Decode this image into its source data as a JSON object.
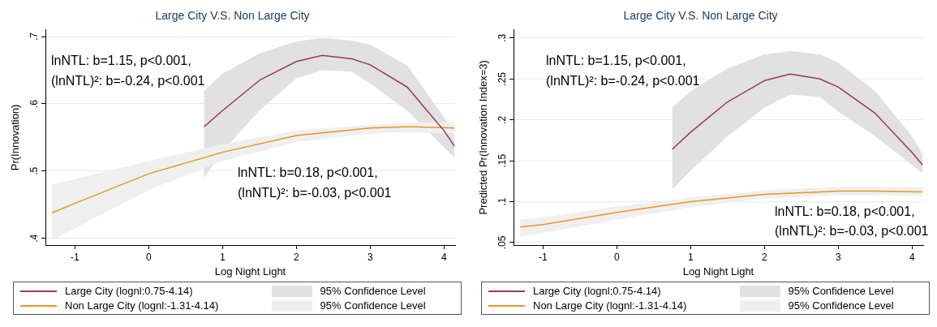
{
  "chart_data": [
    {
      "type": "line",
      "title": "Large City V.S. Non Large City",
      "xlabel": "Log Night Light",
      "ylabel": "Pr(Innovation)",
      "xlim": [
        -1.4,
        4.15
      ],
      "xticks": [
        -1,
        0,
        1,
        2,
        3,
        4
      ],
      "ylim": [
        0.39,
        0.71
      ],
      "yticks": [
        {
          "value": 0.4,
          "label": ".4"
        },
        {
          "value": 0.5,
          "label": ".5"
        },
        {
          "value": 0.6,
          "label": ".6"
        },
        {
          "value": 0.7,
          "label": ".7"
        }
      ],
      "grid": "y",
      "legend": "bottom",
      "annotations": [
        "lnNTL: b=1.15, p<0.001,",
        "(lnNTL)²: b=-0.24, p<0.001",
        "lnNTL: b=0.18, p<0.001,",
        "(lnNTL)²: b=-0.03, p<0.001",
        "95% Confidence Level",
        "95% Confidence Level"
      ],
      "series": [
        {
          "name": "Large City (lognl:0.75-4.14)",
          "type": "line",
          "color": "#9b3a4a",
          "x": [
            0.75,
            1,
            1.5,
            2,
            2.35,
            2.75,
            3,
            3.5,
            4,
            4.14
          ],
          "values": [
            0.566,
            0.59,
            0.635,
            0.663,
            0.672,
            0.667,
            0.658,
            0.625,
            0.56,
            0.537
          ],
          "upper": [
            0.62,
            0.645,
            0.675,
            0.693,
            0.698,
            0.694,
            0.688,
            0.657,
            0.58,
            0.553
          ],
          "lower": [
            0.49,
            0.53,
            0.59,
            0.638,
            0.65,
            0.648,
            0.63,
            0.59,
            0.535,
            0.52
          ]
        },
        {
          "name": "Non Large City (lognl:-1.31-4.14)",
          "type": "line",
          "color": "#e8951f",
          "x": [
            -1.31,
            -1,
            0,
            1,
            2,
            3,
            3.5,
            4.14
          ],
          "values": [
            0.438,
            0.452,
            0.496,
            0.528,
            0.553,
            0.564,
            0.566,
            0.564
          ],
          "upper": [
            0.48,
            0.488,
            0.515,
            0.54,
            0.56,
            0.569,
            0.572,
            0.573
          ],
          "lower": [
            0.397,
            0.415,
            0.472,
            0.515,
            0.543,
            0.556,
            0.558,
            0.556
          ]
        }
      ]
    },
    {
      "type": "line",
      "title": "Large City V.S. Non Large City",
      "xlabel": "Log Night Light",
      "ylabel": "Predicted Pr(Innovation Index=3)",
      "xlim": [
        -1.4,
        4.15
      ],
      "xticks": [
        -1,
        0,
        1,
        2,
        3,
        4
      ],
      "ylim": [
        0.047,
        0.31
      ],
      "yticks": [
        {
          "value": 0.05,
          "label": ".05"
        },
        {
          "value": 0.1,
          "label": ".1"
        },
        {
          "value": 0.15,
          "label": ".15"
        },
        {
          "value": 0.2,
          "label": ".2"
        },
        {
          "value": 0.25,
          "label": ".25"
        },
        {
          "value": 0.3,
          "label": ".3"
        }
      ],
      "grid": "y",
      "legend": "bottom",
      "annotations": [
        "lnNTL: b=1.15, p<0.001,",
        "(lnNTL)²: b=-0.24, p<0.001",
        "lnNTL: b=0.18, p<0.001,",
        "(lnNTL)²: b=-0.03, p<0.001",
        "95% Confidence Level",
        "95% Confidence Level"
      ],
      "series": [
        {
          "name": "Large City (lognl:0.75-4.14)",
          "type": "line",
          "color": "#9b3a4a",
          "x": [
            0.75,
            1,
            1.5,
            2,
            2.35,
            2.75,
            3,
            3.5,
            4,
            4.14
          ],
          "values": [
            0.164,
            0.185,
            0.222,
            0.248,
            0.256,
            0.25,
            0.24,
            0.208,
            0.16,
            0.145
          ],
          "upper": [
            0.215,
            0.235,
            0.263,
            0.28,
            0.284,
            0.28,
            0.27,
            0.235,
            0.18,
            0.158
          ],
          "lower": [
            0.115,
            0.138,
            0.18,
            0.215,
            0.231,
            0.228,
            0.21,
            0.18,
            0.145,
            0.135
          ]
        },
        {
          "name": "Non Large City (lognl:-1.31-4.14)",
          "type": "line",
          "color": "#e8951f",
          "x": [
            -1.31,
            -1,
            0,
            1,
            2,
            3,
            3.5,
            4.14
          ],
          "values": [
            0.069,
            0.072,
            0.087,
            0.1,
            0.109,
            0.113,
            0.113,
            0.112
          ],
          "upper": [
            0.078,
            0.081,
            0.094,
            0.105,
            0.114,
            0.118,
            0.118,
            0.118
          ],
          "lower": [
            0.057,
            0.062,
            0.078,
            0.093,
            0.104,
            0.108,
            0.108,
            0.107
          ]
        }
      ]
    }
  ]
}
